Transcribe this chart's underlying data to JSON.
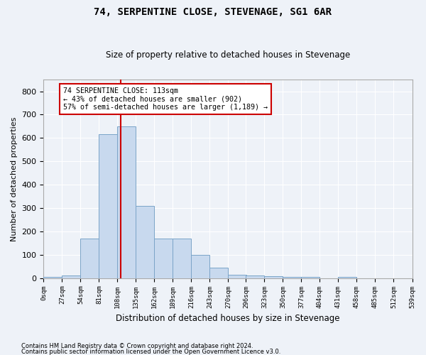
{
  "title": "74, SERPENTINE CLOSE, STEVENAGE, SG1 6AR",
  "subtitle": "Size of property relative to detached houses in Stevenage",
  "xlabel": "Distribution of detached houses by size in Stevenage",
  "ylabel": "Number of detached properties",
  "bin_edges": [
    0,
    27,
    54,
    81,
    108,
    135,
    162,
    189,
    216,
    243,
    270,
    296,
    323,
    350,
    377,
    404,
    431,
    458,
    485,
    512,
    539
  ],
  "bar_values": [
    5,
    12,
    170,
    615,
    650,
    308,
    170,
    170,
    98,
    45,
    15,
    10,
    8,
    5,
    5,
    0,
    4,
    0,
    0,
    0
  ],
  "bar_color": "#c8d9ee",
  "bar_edge_color": "#7ba4c8",
  "property_size": 113,
  "vline_color": "#cc0000",
  "annotation_text": "74 SERPENTINE CLOSE: 113sqm\n← 43% of detached houses are smaller (902)\n57% of semi-detached houses are larger (1,189) →",
  "annotation_box_color": "#ffffff",
  "annotation_box_edge": "#cc0000",
  "footer_line1": "Contains HM Land Registry data © Crown copyright and database right 2024.",
  "footer_line2": "Contains public sector information licensed under the Open Government Licence v3.0.",
  "background_color": "#eef2f8",
  "ylim": [
    0,
    850
  ],
  "yticks": [
    0,
    100,
    200,
    300,
    400,
    500,
    600,
    700,
    800
  ]
}
